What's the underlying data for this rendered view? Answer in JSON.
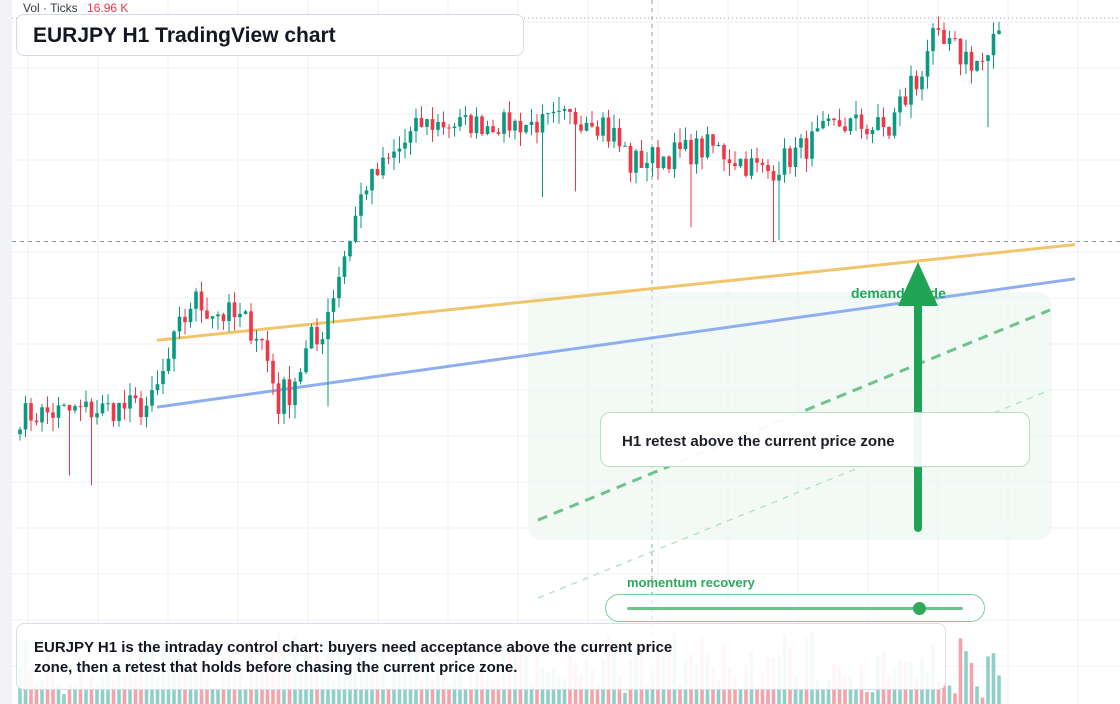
{
  "header": {
    "vol_label": "Vol · Ticks",
    "vol_value": "16.96 K",
    "title": "EURJPY H1 TradingView chart"
  },
  "annotations": {
    "retest": "H1 retest above the current price zone",
    "demand": "demand guide",
    "momentum": "momentum recovery",
    "momentum_level": 0.87,
    "note": "EURJPY H1 is the intraday control chart: buyers need acceptance above the current price zone, then a retest that holds before chasing the current price zone."
  },
  "colors": {
    "up": "#089981",
    "down": "#f23645",
    "up_volume": "#8fd0c6",
    "down_volume": "#f5a3aa",
    "demand_arrow": "#1fa453",
    "orange_line": "#f2c46b",
    "blue_line": "#8eaeee",
    "dashed_green": "#6cc48a"
  },
  "chart_data": {
    "type": "candlestick",
    "symbol": "EURJPY",
    "timeframe": "H1",
    "price_axis_visible": false,
    "time_axis_visible": false,
    "segments": [
      {
        "bars": 24,
        "start": 0.18,
        "end": 0.2,
        "noise": 0.03
      },
      {
        "bars": 8,
        "start": 0.2,
        "end": 0.42,
        "noise": 0.04
      },
      {
        "bars": 11,
        "start": 0.42,
        "end": 0.37,
        "noise": 0.035
      },
      {
        "bars": 5,
        "start": 0.37,
        "end": 0.22,
        "noise": 0.06
      },
      {
        "bars": 6,
        "start": 0.22,
        "end": 0.33,
        "noise": 0.045
      },
      {
        "bars": 10,
        "start": 0.33,
        "end": 0.68,
        "noise": 0.04
      },
      {
        "bars": 10,
        "start": 0.68,
        "end": 0.8,
        "noise": 0.03
      },
      {
        "bars": 22,
        "start": 0.8,
        "end": 0.8,
        "noise": 0.025
      },
      {
        "bars": 9,
        "start": 0.8,
        "end": 0.82,
        "noise": 0.03
      },
      {
        "bars": 7,
        "start": 0.82,
        "end": 0.72,
        "noise": 0.045
      },
      {
        "bars": 14,
        "start": 0.72,
        "end": 0.75,
        "noise": 0.03
      },
      {
        "bars": 10,
        "start": 0.75,
        "end": 0.7,
        "noise": 0.03
      },
      {
        "bars": 14,
        "start": 0.7,
        "end": 0.8,
        "noise": 0.03
      },
      {
        "bars": 8,
        "start": 0.8,
        "end": 0.79,
        "noise": 0.03
      },
      {
        "bars": 5,
        "start": 0.79,
        "end": 0.88,
        "noise": 0.05
      },
      {
        "bars": 3,
        "start": 0.88,
        "end": 0.97,
        "noise": 0.04
      },
      {
        "bars": 10,
        "start": 0.97,
        "end": 0.93,
        "noise": 0.035
      },
      {
        "bars": 3,
        "start": 0.93,
        "end": 1.0,
        "noise": 0.03
      }
    ],
    "guides": {
      "orange_trendline": {
        "start": 0.34,
        "end": 0.62
      },
      "blue_trendline": {
        "start": 0.27,
        "end": 0.56
      },
      "horizontal_level": 0.55
    }
  }
}
